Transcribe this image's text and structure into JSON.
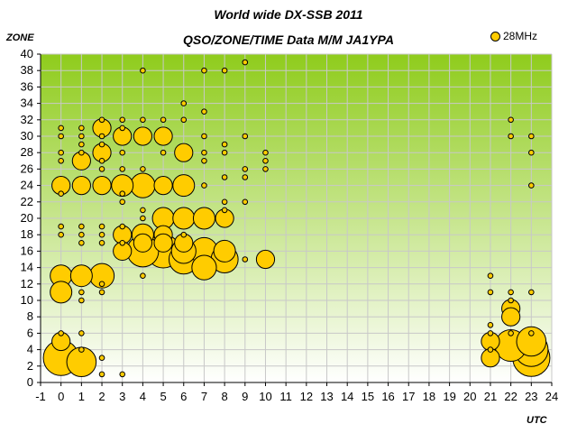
{
  "chart_data": {
    "type": "scatter",
    "title": "World wide DX-SSB 2011",
    "subtitle": "QSO/ZONE/TIME Data M/M JA1YPA",
    "xlabel": "UTC",
    "ylabel": "ZONE",
    "xlim": [
      -1,
      24
    ],
    "ylim": [
      0,
      40
    ],
    "xticks": [
      "-1",
      "0",
      "1",
      "2",
      "3",
      "4",
      "5",
      "6",
      "7",
      "8",
      "9",
      "10",
      "11",
      "12",
      "13",
      "14",
      "15",
      "16",
      "17",
      "18",
      "19",
      "20",
      "21",
      "22",
      "23",
      "24"
    ],
    "yticks": [
      "0",
      "2",
      "4",
      "6",
      "8",
      "10",
      "12",
      "14",
      "16",
      "18",
      "20",
      "22",
      "24",
      "26",
      "28",
      "30",
      "32",
      "34",
      "36",
      "38",
      "40"
    ],
    "grid": true,
    "legend_position": "top-right",
    "colors": {
      "marker": "#ffcc00",
      "marker_edge": "#000000",
      "bg_top": "#8fcc1c",
      "bg_bottom": "#ffffff",
      "grid": "#c8c8c8"
    },
    "series": [
      {
        "name": "28MHz",
        "points": [
          {
            "x": 0,
            "y": 31,
            "s": 1
          },
          {
            "x": 0,
            "y": 30,
            "s": 1
          },
          {
            "x": 0,
            "y": 28,
            "s": 1
          },
          {
            "x": 0,
            "y": 27,
            "s": 1
          },
          {
            "x": 0,
            "y": 24,
            "s": 2
          },
          {
            "x": 0,
            "y": 23,
            "s": 1
          },
          {
            "x": 0,
            "y": 19,
            "s": 1
          },
          {
            "x": 0,
            "y": 18,
            "s": 1
          },
          {
            "x": 0,
            "y": 13,
            "s": 3
          },
          {
            "x": 0,
            "y": 11,
            "s": 3
          },
          {
            "x": 0,
            "y": 6,
            "s": 1
          },
          {
            "x": 0,
            "y": 5,
            "s": 2
          },
          {
            "x": 0,
            "y": 3,
            "s": 9
          },
          {
            "x": 1,
            "y": 31,
            "s": 1
          },
          {
            "x": 1,
            "y": 30,
            "s": 1
          },
          {
            "x": 1,
            "y": 29,
            "s": 1
          },
          {
            "x": 1,
            "y": 28,
            "s": 1
          },
          {
            "x": 1,
            "y": 27,
            "s": 2
          },
          {
            "x": 1,
            "y": 24,
            "s": 2
          },
          {
            "x": 1,
            "y": 19,
            "s": 1
          },
          {
            "x": 1,
            "y": 18,
            "s": 1
          },
          {
            "x": 1,
            "y": 17,
            "s": 1
          },
          {
            "x": 1,
            "y": 13,
            "s": 3
          },
          {
            "x": 1,
            "y": 11,
            "s": 1
          },
          {
            "x": 1,
            "y": 10,
            "s": 1
          },
          {
            "x": 1,
            "y": 6,
            "s": 1
          },
          {
            "x": 1,
            "y": 4,
            "s": 1
          },
          {
            "x": 1,
            "y": 2.5,
            "s": 6
          },
          {
            "x": 2,
            "y": 32,
            "s": 1
          },
          {
            "x": 2,
            "y": 31,
            "s": 2
          },
          {
            "x": 2,
            "y": 30,
            "s": 1
          },
          {
            "x": 2,
            "y": 29,
            "s": 1
          },
          {
            "x": 2,
            "y": 28,
            "s": 2
          },
          {
            "x": 2,
            "y": 27,
            "s": 1
          },
          {
            "x": 2,
            "y": 26,
            "s": 1
          },
          {
            "x": 2,
            "y": 24,
            "s": 2
          },
          {
            "x": 2,
            "y": 19,
            "s": 1
          },
          {
            "x": 2,
            "y": 18,
            "s": 1
          },
          {
            "x": 2,
            "y": 17,
            "s": 1
          },
          {
            "x": 2,
            "y": 13,
            "s": 4
          },
          {
            "x": 2,
            "y": 12,
            "s": 1
          },
          {
            "x": 2,
            "y": 11,
            "s": 1
          },
          {
            "x": 2,
            "y": 3,
            "s": 1
          },
          {
            "x": 2,
            "y": 1,
            "s": 1
          },
          {
            "x": 3,
            "y": 32,
            "s": 1
          },
          {
            "x": 3,
            "y": 31,
            "s": 1
          },
          {
            "x": 3,
            "y": 30,
            "s": 2
          },
          {
            "x": 3,
            "y": 28,
            "s": 1
          },
          {
            "x": 3,
            "y": 26,
            "s": 1
          },
          {
            "x": 3,
            "y": 24,
            "s": 3
          },
          {
            "x": 3,
            "y": 23,
            "s": 1
          },
          {
            "x": 3,
            "y": 22,
            "s": 1
          },
          {
            "x": 3,
            "y": 19,
            "s": 1
          },
          {
            "x": 3,
            "y": 18,
            "s": 2
          },
          {
            "x": 3,
            "y": 17,
            "s": 1
          },
          {
            "x": 3,
            "y": 16,
            "s": 2
          },
          {
            "x": 3,
            "y": 1,
            "s": 1
          },
          {
            "x": 4,
            "y": 38,
            "s": 1
          },
          {
            "x": 4,
            "y": 32,
            "s": 1
          },
          {
            "x": 4,
            "y": 30,
            "s": 2
          },
          {
            "x": 4,
            "y": 26,
            "s": 1
          },
          {
            "x": 4,
            "y": 24,
            "s": 4
          },
          {
            "x": 4,
            "y": 21,
            "s": 1
          },
          {
            "x": 4,
            "y": 20,
            "s": 1
          },
          {
            "x": 4,
            "y": 18,
            "s": 3
          },
          {
            "x": 4,
            "y": 17,
            "s": 2
          },
          {
            "x": 4,
            "y": 16,
            "s": 7
          },
          {
            "x": 4,
            "y": 13,
            "s": 1
          },
          {
            "x": 5,
            "y": 32,
            "s": 1
          },
          {
            "x": 5,
            "y": 30,
            "s": 2
          },
          {
            "x": 5,
            "y": 28,
            "s": 1
          },
          {
            "x": 5,
            "y": 24,
            "s": 2
          },
          {
            "x": 5,
            "y": 20,
            "s": 3
          },
          {
            "x": 5,
            "y": 18,
            "s": 2
          },
          {
            "x": 5,
            "y": 17,
            "s": 2
          },
          {
            "x": 5,
            "y": 16,
            "s": 8
          },
          {
            "x": 6,
            "y": 34,
            "s": 1
          },
          {
            "x": 6,
            "y": 32,
            "s": 1
          },
          {
            "x": 6,
            "y": 28,
            "s": 2
          },
          {
            "x": 6,
            "y": 24,
            "s": 3
          },
          {
            "x": 6,
            "y": 20,
            "s": 3
          },
          {
            "x": 6,
            "y": 18,
            "s": 1
          },
          {
            "x": 6,
            "y": 17,
            "s": 2
          },
          {
            "x": 6,
            "y": 16,
            "s": 4
          },
          {
            "x": 6,
            "y": 15,
            "s": 6
          },
          {
            "x": 7,
            "y": 38,
            "s": 1
          },
          {
            "x": 7,
            "y": 33,
            "s": 1
          },
          {
            "x": 7,
            "y": 30,
            "s": 1
          },
          {
            "x": 7,
            "y": 28,
            "s": 1
          },
          {
            "x": 7,
            "y": 27,
            "s": 1
          },
          {
            "x": 7,
            "y": 24,
            "s": 1
          },
          {
            "x": 7,
            "y": 20,
            "s": 3
          },
          {
            "x": 7,
            "y": 16,
            "s": 5
          },
          {
            "x": 7,
            "y": 15,
            "s": 7
          },
          {
            "x": 7,
            "y": 14,
            "s": 4
          },
          {
            "x": 8,
            "y": 38,
            "s": 1
          },
          {
            "x": 8,
            "y": 29,
            "s": 1
          },
          {
            "x": 8,
            "y": 28,
            "s": 1
          },
          {
            "x": 8,
            "y": 25,
            "s": 1
          },
          {
            "x": 8,
            "y": 22,
            "s": 1
          },
          {
            "x": 8,
            "y": 21,
            "s": 1
          },
          {
            "x": 8,
            "y": 20,
            "s": 2
          },
          {
            "x": 8,
            "y": 16,
            "s": 3
          },
          {
            "x": 8,
            "y": 15,
            "s": 5
          },
          {
            "x": 9,
            "y": 39,
            "s": 1
          },
          {
            "x": 9,
            "y": 30,
            "s": 1
          },
          {
            "x": 9,
            "y": 26,
            "s": 1
          },
          {
            "x": 9,
            "y": 25,
            "s": 1
          },
          {
            "x": 9,
            "y": 22,
            "s": 1
          },
          {
            "x": 9,
            "y": 15,
            "s": 1
          },
          {
            "x": 10,
            "y": 28,
            "s": 1
          },
          {
            "x": 10,
            "y": 27,
            "s": 1
          },
          {
            "x": 10,
            "y": 26,
            "s": 1
          },
          {
            "x": 10,
            "y": 15,
            "s": 2
          },
          {
            "x": 21,
            "y": 13,
            "s": 1
          },
          {
            "x": 21,
            "y": 11,
            "s": 1
          },
          {
            "x": 21,
            "y": 7,
            "s": 1
          },
          {
            "x": 21,
            "y": 6,
            "s": 1
          },
          {
            "x": 21,
            "y": 5,
            "s": 2
          },
          {
            "x": 21,
            "y": 4,
            "s": 1
          },
          {
            "x": 21,
            "y": 3,
            "s": 2
          },
          {
            "x": 22,
            "y": 32,
            "s": 1
          },
          {
            "x": 22,
            "y": 30,
            "s": 1
          },
          {
            "x": 22,
            "y": 11,
            "s": 1
          },
          {
            "x": 22,
            "y": 10,
            "s": 1
          },
          {
            "x": 22,
            "y": 9,
            "s": 2
          },
          {
            "x": 22,
            "y": 8,
            "s": 2
          },
          {
            "x": 22,
            "y": 6,
            "s": 1
          },
          {
            "x": 22,
            "y": 4.5,
            "s": 7
          },
          {
            "x": 23,
            "y": 30,
            "s": 1
          },
          {
            "x": 23,
            "y": 28,
            "s": 1
          },
          {
            "x": 23,
            "y": 24,
            "s": 1
          },
          {
            "x": 23,
            "y": 11,
            "s": 1
          },
          {
            "x": 23,
            "y": 6,
            "s": 1
          },
          {
            "x": 23,
            "y": 5,
            "s": 6
          },
          {
            "x": 23,
            "y": 4,
            "s": 8
          },
          {
            "x": 23,
            "y": 3,
            "s": 10
          }
        ]
      }
    ]
  }
}
